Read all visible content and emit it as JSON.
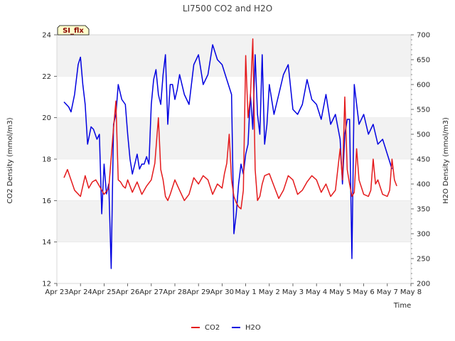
{
  "chart_data": {
    "type": "line",
    "title": "LI7500 CO2 and H2O",
    "xlabel": "Time",
    "ylabel_left": "CO2 Density (mmol/m3)",
    "ylabel_right": "H2O Density (mmol/m3)",
    "badge": "SI_flx",
    "x_ticks": [
      "Apr 23",
      "Apr 24",
      "Apr 25",
      "Apr 26",
      "Apr 27",
      "Apr 28",
      "Apr 29",
      "Apr 30",
      "May 1",
      "May 2",
      "May 3",
      "May 4",
      "May 5",
      "May 6",
      "May 7",
      "May 8"
    ],
    "ylim_left": [
      12,
      24
    ],
    "yticks_left": [
      "12",
      "14",
      "16",
      "18",
      "20",
      "22",
      "24"
    ],
    "ylim_right": [
      200,
      700
    ],
    "yticks_right": [
      "200",
      "250",
      "300",
      "350",
      "400",
      "450",
      "500",
      "550",
      "600",
      "650",
      "700"
    ],
    "grid": "horizontal bands",
    "legend_position": "bottom-center",
    "colors": {
      "co2": "#e41a1c",
      "h2o": "#0000e0",
      "band": "#f2f2f2",
      "badge_bg": "#ffffcc",
      "badge_text": "#8b0000"
    },
    "series": [
      {
        "name": "CO2",
        "axis": "left",
        "x": [
          0.3,
          0.45,
          0.6,
          0.75,
          1.0,
          1.2,
          1.35,
          1.5,
          1.65,
          1.8,
          2.0,
          2.2,
          2.4,
          2.5,
          2.6,
          2.7,
          2.8,
          2.9,
          3.0,
          3.2,
          3.4,
          3.6,
          3.8,
          4.0,
          4.15,
          4.3,
          4.4,
          4.5,
          4.6,
          4.7,
          4.8,
          5.0,
          5.2,
          5.4,
          5.6,
          5.8,
          6.0,
          6.2,
          6.4,
          6.6,
          6.8,
          7.0,
          7.1,
          7.2,
          7.3,
          7.4,
          7.5,
          7.6,
          7.7,
          7.8,
          7.9,
          8.0,
          8.1,
          8.2,
          8.3,
          8.4,
          8.5,
          8.6,
          8.7,
          8.8,
          9.0,
          9.2,
          9.4,
          9.6,
          9.8,
          10.0,
          10.2,
          10.4,
          10.6,
          10.8,
          11.0,
          11.2,
          11.4,
          11.6,
          11.8,
          12.0,
          12.1,
          12.2,
          12.3,
          12.4,
          12.5,
          12.6,
          12.7,
          12.8,
          13.0,
          13.2,
          13.3,
          13.4,
          13.5,
          13.6,
          13.8,
          14.0,
          14.1,
          14.2,
          14.3,
          14.4
        ],
        "values": [
          17.1,
          17.5,
          17.0,
          16.5,
          16.2,
          17.2,
          16.6,
          16.9,
          17.0,
          16.7,
          16.3,
          16.6,
          19.5,
          20.8,
          17.0,
          16.9,
          16.7,
          16.6,
          17.0,
          16.4,
          16.9,
          16.3,
          16.7,
          17.0,
          17.8,
          20.0,
          17.5,
          17.0,
          16.2,
          16.0,
          16.3,
          17.0,
          16.5,
          16.0,
          16.3,
          17.1,
          16.8,
          17.2,
          17.0,
          16.3,
          16.8,
          16.6,
          17.3,
          17.8,
          19.2,
          17.0,
          16.2,
          15.9,
          15.7,
          15.6,
          16.5,
          23.0,
          20.0,
          21.0,
          23.8,
          17.5,
          16.0,
          16.2,
          16.8,
          17.2,
          17.3,
          16.7,
          16.1,
          16.5,
          17.2,
          17.0,
          16.3,
          16.5,
          16.9,
          17.2,
          17.0,
          16.4,
          16.8,
          16.2,
          16.5,
          18.5,
          17.0,
          21.0,
          17.5,
          16.8,
          16.2,
          16.4,
          18.5,
          17.0,
          16.3,
          16.2,
          16.5,
          18.0,
          16.8,
          17.0,
          16.3,
          16.2,
          16.5,
          18.0,
          17.0,
          16.7
        ]
      },
      {
        "name": "H2O",
        "axis": "right",
        "x": [
          0.3,
          0.5,
          0.6,
          0.75,
          0.9,
          1.0,
          1.1,
          1.2,
          1.3,
          1.45,
          1.55,
          1.7,
          1.8,
          1.9,
          2.0,
          2.1,
          2.2,
          2.3,
          2.4,
          2.5,
          2.6,
          2.75,
          2.9,
          3.0,
          3.1,
          3.2,
          3.3,
          3.4,
          3.5,
          3.6,
          3.7,
          3.8,
          3.9,
          4.0,
          4.1,
          4.2,
          4.3,
          4.4,
          4.5,
          4.6,
          4.7,
          4.8,
          4.9,
          5.0,
          5.1,
          5.2,
          5.4,
          5.6,
          5.8,
          6.0,
          6.2,
          6.4,
          6.6,
          6.8,
          7.0,
          7.2,
          7.4,
          7.5,
          7.6,
          7.7,
          7.8,
          7.9,
          8.0,
          8.1,
          8.2,
          8.3,
          8.4,
          8.5,
          8.6,
          8.7,
          8.8,
          8.9,
          9.0,
          9.2,
          9.4,
          9.6,
          9.8,
          10.0,
          10.2,
          10.4,
          10.6,
          10.8,
          11.0,
          11.2,
          11.4,
          11.6,
          11.8,
          12.0,
          12.1,
          12.2,
          12.3,
          12.4,
          12.5,
          12.6,
          12.8,
          13.0,
          13.2,
          13.4,
          13.6,
          13.8,
          14.0,
          14.2
        ],
        "values": [
          565,
          555,
          545,
          580,
          640,
          655,
          600,
          560,
          480,
          515,
          510,
          490,
          500,
          340,
          440,
          380,
          400,
          230,
          520,
          540,
          600,
          570,
          560,
          500,
          450,
          420,
          440,
          460,
          430,
          440,
          440,
          455,
          440,
          560,
          610,
          630,
          580,
          560,
          620,
          660,
          520,
          600,
          600,
          570,
          590,
          620,
          580,
          560,
          640,
          660,
          600,
          620,
          680,
          650,
          640,
          610,
          580,
          300,
          340,
          400,
          440,
          420,
          460,
          480,
          580,
          510,
          660,
          540,
          500,
          660,
          480,
          520,
          600,
          540,
          580,
          620,
          640,
          550,
          540,
          560,
          610,
          570,
          560,
          530,
          580,
          520,
          540,
          490,
          400,
          500,
          530,
          530,
          250,
          600,
          520,
          540,
          500,
          520,
          480,
          490,
          460,
          430
        ]
      }
    ]
  }
}
